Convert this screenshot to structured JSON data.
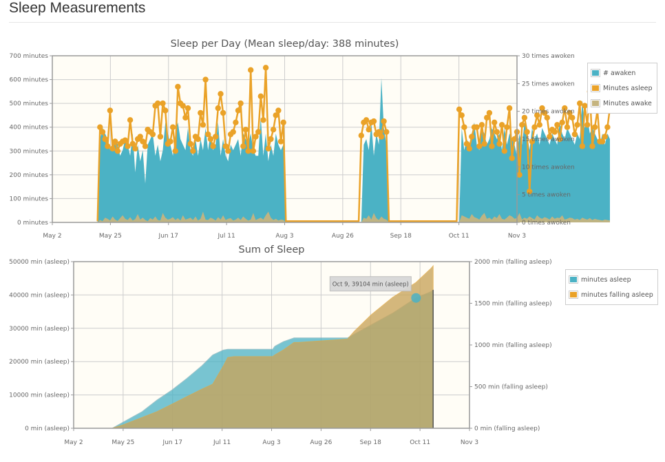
{
  "page": {
    "title": "Sleep Measurements"
  },
  "colors": {
    "awaken": "#4bb2c5",
    "asleep": "#eaa228",
    "awake": "#c5b47f",
    "plot_bg": "#fffdf6",
    "grid": "#cccccc",
    "axis_text": "#666666"
  },
  "chart_data": [
    {
      "type": "line",
      "title": "Sleep per Day (Mean sleep/day: 388 minutes)",
      "x_axis": {
        "ticks": [
          "May 2",
          "May 25",
          "Jun 17",
          "Jul 11",
          "Aug 3",
          "Aug 26",
          "Sep 18",
          "Oct 11",
          "Nov 3"
        ]
      },
      "y_axis_left": {
        "range": [
          0,
          700
        ],
        "ticks": [
          "700 minutes",
          "600 minutes",
          "500 minutes",
          "400 minutes",
          "300 minutes",
          "200 minutes",
          "100 minutes",
          "0 minutes"
        ]
      },
      "y_axis_right": {
        "range": [
          0,
          30
        ],
        "ticks": [
          "30 times awoken",
          "25 times awoken",
          "20 times awoken",
          "15 times awoken",
          "10 times awoken",
          "5 times awoken",
          "0 times awoken"
        ]
      },
      "legend": {
        "position": "right",
        "items": [
          "# awaken",
          "Minutes asleep",
          "Minutes awake"
        ]
      },
      "x_start": "May 2",
      "series": [
        {
          "name": "Minutes asleep",
          "axis": "left",
          "type": "line",
          "start_index": 18,
          "values": [
            5,
            400,
            380,
            350,
            320,
            470,
            310,
            340,
            300,
            330,
            340,
            345,
            320,
            430,
            330,
            310,
            350,
            360,
            340,
            320,
            390,
            380,
            370,
            490,
            500,
            360,
            500,
            470,
            330,
            340,
            400,
            300,
            570,
            500,
            490,
            440,
            480,
            330,
            300,
            360,
            350,
            460,
            410,
            600,
            370,
            350,
            320,
            360,
            480,
            540,
            460,
            320,
            300,
            370,
            380,
            420,
            470,
            500,
            320,
            390,
            300,
            640,
            300,
            360,
            380,
            530,
            430,
            650,
            310,
            350,
            390,
            450,
            470,
            340,
            420,
            5,
            5,
            5,
            5,
            5,
            5,
            5,
            5,
            5,
            5,
            5,
            5,
            5,
            5,
            5,
            5,
            5,
            5,
            5,
            5,
            5,
            5,
            5,
            5,
            5,
            5,
            5,
            5,
            5,
            5,
            365,
            420,
            430,
            390,
            420,
            425,
            370,
            380,
            360,
            425,
            380,
            5,
            5,
            5,
            5,
            5,
            5,
            5,
            5,
            5,
            5,
            5,
            5,
            5,
            5,
            5,
            5,
            5,
            5,
            5,
            5,
            5,
            5,
            5,
            5,
            5,
            5,
            5,
            5,
            475,
            450,
            400,
            330,
            310,
            360,
            400,
            400,
            320,
            410,
            330,
            440,
            460,
            320,
            420,
            380,
            330,
            410,
            300,
            400,
            480,
            270,
            350,
            380,
            200,
            410,
            440,
            380,
            130,
            340,
            400,
            450,
            410,
            480,
            460,
            440,
            360,
            390,
            380,
            410,
            350,
            420,
            480,
            400,
            460,
            440,
            370,
            410,
            500,
            320,
            490,
            410,
            550,
            320,
            400,
            470,
            340,
            340,
            360,
            400,
            480
          ]
        },
        {
          "name": "# awaken",
          "axis": "right",
          "type": "area",
          "start_index": 18,
          "values": [
            0,
            15,
            17,
            16,
            15,
            13,
            14,
            15,
            14,
            12,
            13,
            15,
            14,
            12,
            16,
            9,
            14,
            11,
            13,
            7,
            14,
            15,
            16,
            12,
            14,
            11,
            13,
            18,
            16,
            14,
            12,
            16,
            18,
            15,
            14,
            13,
            17,
            13,
            12,
            15,
            12,
            15,
            13,
            17,
            13,
            16,
            13,
            14,
            18,
            12,
            15,
            12,
            11,
            14,
            13,
            14,
            15,
            12,
            16,
            15,
            14,
            16,
            13,
            12,
            12,
            19,
            12,
            16,
            11,
            14,
            12,
            16,
            14,
            13,
            14,
            0,
            0,
            0,
            0,
            0,
            0,
            0,
            0,
            0,
            0,
            0,
            0,
            0,
            0,
            0,
            0,
            0,
            0,
            0,
            0,
            0,
            0,
            0,
            0,
            0,
            0,
            0,
            0,
            0,
            0,
            0,
            14,
            15,
            13,
            18,
            12,
            16,
            14,
            26,
            17,
            14,
            0,
            0,
            0,
            0,
            0,
            0,
            0,
            0,
            0,
            0,
            0,
            0,
            0,
            0,
            0,
            0,
            0,
            0,
            0,
            0,
            0,
            0,
            0,
            0,
            0,
            0,
            0,
            0,
            0,
            17,
            13,
            15,
            14,
            16,
            18,
            14,
            13,
            17,
            16,
            14,
            15,
            17,
            16,
            15,
            16,
            13,
            17,
            14,
            16,
            15,
            14,
            12,
            16,
            14,
            18,
            16,
            13,
            17,
            15,
            16,
            14,
            17,
            16,
            15,
            14,
            16,
            15,
            14,
            18,
            16,
            15,
            17,
            16,
            15,
            14,
            16,
            15,
            22,
            17,
            19,
            16,
            17,
            16,
            15,
            14,
            16,
            14,
            16,
            15
          ]
        },
        {
          "name": "Minutes awake",
          "axis": "left",
          "type": "area",
          "start_index": 18,
          "values": [
            0,
            10,
            5,
            20,
            15,
            8,
            25,
            12,
            6,
            18,
            30,
            15,
            10,
            22,
            8,
            14,
            35,
            12,
            20,
            10,
            5,
            18,
            12,
            25,
            10,
            8,
            40,
            20,
            12,
            15,
            22,
            10,
            18,
            8,
            30,
            12,
            15,
            20,
            10,
            25,
            8,
            15,
            45,
            12,
            10,
            20,
            15,
            8,
            22,
            12,
            30,
            10,
            15,
            18,
            8,
            12,
            20,
            10,
            25,
            15,
            8,
            12,
            40,
            10,
            15,
            20,
            12,
            30,
            45,
            20,
            10,
            15,
            8,
            12,
            10,
            0,
            0,
            0,
            0,
            0,
            0,
            0,
            0,
            0,
            0,
            0,
            0,
            0,
            0,
            0,
            0,
            0,
            0,
            0,
            0,
            0,
            0,
            0,
            0,
            0,
            0,
            0,
            0,
            0,
            0,
            0,
            20,
            15,
            30,
            12,
            40,
            18,
            10,
            25,
            15,
            12,
            0,
            0,
            0,
            0,
            0,
            0,
            0,
            0,
            0,
            0,
            0,
            0,
            0,
            0,
            0,
            0,
            0,
            0,
            0,
            0,
            0,
            0,
            0,
            0,
            0,
            0,
            0,
            0,
            0,
            30,
            25,
            20,
            15,
            35,
            22,
            18,
            12,
            28,
            40,
            15,
            20,
            12,
            25,
            18,
            35,
            15,
            12,
            20,
            30,
            25,
            15,
            18,
            40,
            12,
            20,
            15,
            25,
            18,
            12,
            30,
            20,
            15,
            22,
            18,
            12,
            25,
            15,
            20,
            18,
            30,
            12,
            15,
            20,
            18,
            12,
            15,
            10,
            20,
            15,
            12,
            18,
            10,
            15,
            12,
            10,
            8,
            12,
            10,
            8
          ]
        }
      ]
    },
    {
      "type": "area",
      "title": "Sum of Sleep",
      "x_axis": {
        "ticks": [
          "May 2",
          "May 25",
          "Jun 17",
          "Jul 11",
          "Aug 3",
          "Aug 26",
          "Sep 18",
          "Oct 11",
          "Nov 3"
        ]
      },
      "y_axis_left": {
        "range": [
          0,
          50000
        ],
        "ticks": [
          "50000 min (asleep)",
          "40000 min (asleep)",
          "30000 min (asleep)",
          "20000 min (asleep)",
          "10000 min (asleep)",
          "0 min (asleep)"
        ]
      },
      "y_axis_right": {
        "range": [
          0,
          2000
        ],
        "ticks": [
          "2000 min (falling asleep)",
          "1500 min (falling asleep)",
          "1000 min (falling asleep)",
          "500 min (falling asleep)",
          "0 min (falling asleep)"
        ]
      },
      "legend": {
        "position": "right",
        "items": [
          "minutes asleep",
          "minutes falling asleep"
        ]
      },
      "tooltip": {
        "text": "Oct 9, 39104 min (asleep)",
        "x": "Oct 9",
        "y": 39104
      },
      "series": [
        {
          "name": "minutes asleep",
          "axis": "left",
          "points": [
            [
              "May 2",
              0
            ],
            [
              "May 20",
              0
            ],
            [
              "May 25",
              1800
            ],
            [
              "Jun 3",
              5000
            ],
            [
              "Jun 10",
              8500
            ],
            [
              "Jun 17",
              11500
            ],
            [
              "Jun 24",
              15000
            ],
            [
              "Jul 1",
              18800
            ],
            [
              "Jul 6",
              22000
            ],
            [
              "Jul 11",
              23500
            ],
            [
              "Jul 13",
              23700
            ],
            [
              "Jul 16",
              23700
            ],
            [
              "Aug 3",
              23700
            ],
            [
              "Aug 4",
              24600
            ],
            [
              "Aug 8",
              26000
            ],
            [
              "Aug 13",
              27100
            ],
            [
              "Aug 15",
              27100
            ],
            [
              "Sep 7",
              27100
            ],
            [
              "Sep 18",
              31000
            ],
            [
              "Sep 28",
              34500
            ],
            [
              "Oct 9",
              39104
            ],
            [
              "Oct 16",
              41000
            ],
            [
              "Oct 17",
              41500
            ]
          ]
        },
        {
          "name": "minutes falling asleep",
          "axis": "right",
          "points": [
            [
              "May 2",
              0
            ],
            [
              "May 20",
              0
            ],
            [
              "May 25",
              40
            ],
            [
              "Jun 3",
              130
            ],
            [
              "Jun 10",
              200
            ],
            [
              "Jun 17",
              290
            ],
            [
              "Jun 24",
              380
            ],
            [
              "Jul 1",
              470
            ],
            [
              "Jul 6",
              530
            ],
            [
              "Jul 11",
              750
            ],
            [
              "Jul 13",
              850
            ],
            [
              "Jul 16",
              860
            ],
            [
              "Aug 3",
              860
            ],
            [
              "Aug 4",
              880
            ],
            [
              "Aug 8",
              940
            ],
            [
              "Aug 13",
              1030
            ],
            [
              "Aug 15",
              1030
            ],
            [
              "Sep 7",
              1070
            ],
            [
              "Sep 10",
              1160
            ],
            [
              "Sep 18",
              1360
            ],
            [
              "Sep 28",
              1570
            ],
            [
              "Oct 9",
              1750
            ],
            [
              "Oct 16",
              1920
            ],
            [
              "Oct 17",
              1950
            ]
          ]
        }
      ]
    }
  ]
}
